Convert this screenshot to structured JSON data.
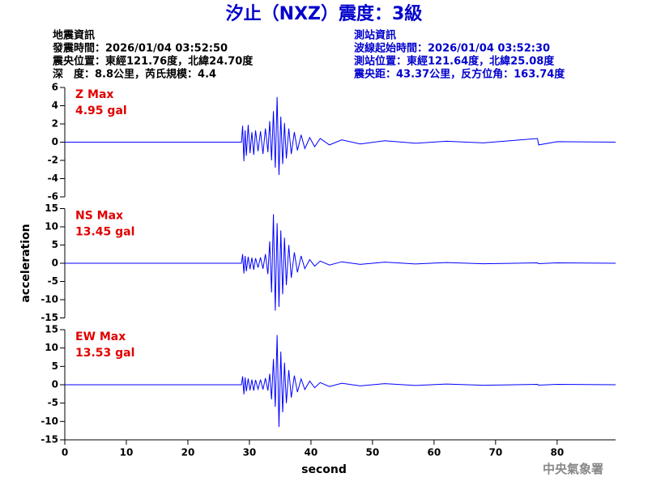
{
  "header": {
    "title": "汐止（NXZ）震度：3級",
    "left": [
      "地震資訊",
      "發震時間：2026/01/04 03:52:50",
      "震央位置：東經121.76度，北緯24.70度",
      "深　度：8.8公里，芮氏規模：4.4"
    ],
    "right": [
      "測站資訊",
      "波線起始時間：2026/01/04 03:52:30",
      "測站位置：東經121.64度，北緯25.08度",
      "震央距：43.37公里，反方位角：163.74度"
    ]
  },
  "ylabel": "acceleration",
  "xlabel": "second",
  "footer": "中央氣象署",
  "chart_data": [
    {
      "type": "line",
      "color": "#0000ff",
      "annotations": [
        "Z Max",
        "4.95 gal"
      ],
      "xlim": [
        0,
        89.5
      ],
      "ylim": [
        -6,
        6
      ],
      "yticks": [
        -6,
        -4,
        -2,
        0,
        2,
        4,
        6
      ],
      "x": [
        0,
        28.7,
        28.9,
        29.1,
        29.3,
        29.5,
        29.8,
        30.1,
        30.4,
        30.7,
        31.0,
        31.4,
        31.8,
        32.2,
        32.6,
        33.0,
        33.3,
        33.6,
        33.9,
        34.2,
        34.5,
        34.8,
        35.1,
        35.4,
        35.7,
        36.0,
        36.4,
        36.8,
        37.3,
        37.8,
        38.4,
        39.0,
        39.8,
        40.6,
        41.5,
        43,
        45,
        48,
        52,
        57,
        62,
        68,
        76.8,
        77,
        80,
        89.5
      ],
      "values": [
        0,
        0,
        1.8,
        -2.1,
        1.3,
        -1.5,
        1.9,
        -1.2,
        1.1,
        -1.4,
        1.3,
        -1.0,
        1.2,
        -1.3,
        1.5,
        -1.1,
        2.3,
        -2.0,
        3.4,
        -2.8,
        4.95,
        -3.6,
        2.8,
        -2.4,
        2.1,
        -1.8,
        1.5,
        -1.3,
        1.1,
        -0.9,
        0.8,
        -0.7,
        0.5,
        -0.5,
        0.4,
        -0.3,
        0.25,
        -0.2,
        0.15,
        -0.12,
        0.1,
        -0.08,
        0.4,
        -0.3,
        0.05,
        0
      ]
    },
    {
      "type": "line",
      "color": "#0000ff",
      "annotations": [
        "NS Max",
        "13.45 gal"
      ],
      "xlim": [
        0,
        89.5
      ],
      "ylim": [
        -15,
        15
      ],
      "yticks": [
        -15,
        -10,
        -5,
        0,
        5,
        10,
        15
      ],
      "x": [
        0,
        28.7,
        28.9,
        29.1,
        29.3,
        29.5,
        29.8,
        30.1,
        30.4,
        30.7,
        31.0,
        31.4,
        31.8,
        32.2,
        32.6,
        33.0,
        33.3,
        33.6,
        33.9,
        34.2,
        34.5,
        34.8,
        35.1,
        35.4,
        35.7,
        36.0,
        36.4,
        36.8,
        37.3,
        37.8,
        38.4,
        39.0,
        39.8,
        40.6,
        41.5,
        43,
        45,
        48,
        52,
        57,
        62,
        68,
        76.8,
        77,
        80,
        89.5
      ],
      "values": [
        0,
        0,
        2.5,
        -2.8,
        2.0,
        -2.2,
        1.8,
        -1.6,
        1.5,
        -1.8,
        1.4,
        -1.2,
        1.6,
        -1.5,
        2.5,
        -3.0,
        6.0,
        -8.0,
        13.45,
        -13.0,
        11.0,
        -12.0,
        9.0,
        -8.5,
        7.0,
        -6.0,
        5.0,
        -4.0,
        3.0,
        -2.5,
        2.0,
        -1.5,
        1.0,
        -0.8,
        0.6,
        -0.5,
        0.4,
        -0.3,
        0.3,
        -0.2,
        0.2,
        -0.15,
        0.1,
        -0.1,
        0.1,
        0
      ]
    },
    {
      "type": "line",
      "color": "#0000ff",
      "annotations": [
        "EW Max",
        "13.53 gal"
      ],
      "xlim": [
        0,
        89.5
      ],
      "ylim": [
        -15,
        15
      ],
      "yticks": [
        -15,
        -10,
        -5,
        0,
        5,
        10,
        15
      ],
      "xticks": [
        0,
        10,
        20,
        30,
        40,
        50,
        60,
        70,
        80
      ],
      "x": [
        0,
        28.7,
        28.9,
        29.1,
        29.3,
        29.5,
        29.8,
        30.1,
        30.4,
        30.7,
        31.0,
        31.4,
        31.8,
        32.2,
        32.6,
        33.0,
        33.3,
        33.6,
        33.9,
        34.2,
        34.5,
        34.8,
        35.1,
        35.4,
        35.7,
        36.0,
        36.4,
        36.8,
        37.3,
        37.8,
        38.4,
        39.0,
        39.8,
        40.6,
        41.5,
        43,
        45,
        48,
        52,
        57,
        62,
        68,
        76.8,
        77,
        80,
        89.5
      ],
      "values": [
        0,
        0,
        2.3,
        -2.6,
        2.0,
        -1.8,
        1.7,
        -1.5,
        1.4,
        -1.6,
        1.3,
        -1.2,
        1.4,
        -1.3,
        1.8,
        -1.6,
        3.0,
        -4.0,
        7.0,
        -6.0,
        13.53,
        -11.5,
        9.0,
        -7.5,
        6.0,
        -5.0,
        4.0,
        -3.5,
        2.5,
        -2.0,
        1.6,
        -1.3,
        1.0,
        -0.8,
        0.6,
        -0.5,
        0.4,
        -0.3,
        0.3,
        -0.2,
        0.2,
        -0.15,
        0.1,
        -0.1,
        0.1,
        0
      ]
    }
  ]
}
